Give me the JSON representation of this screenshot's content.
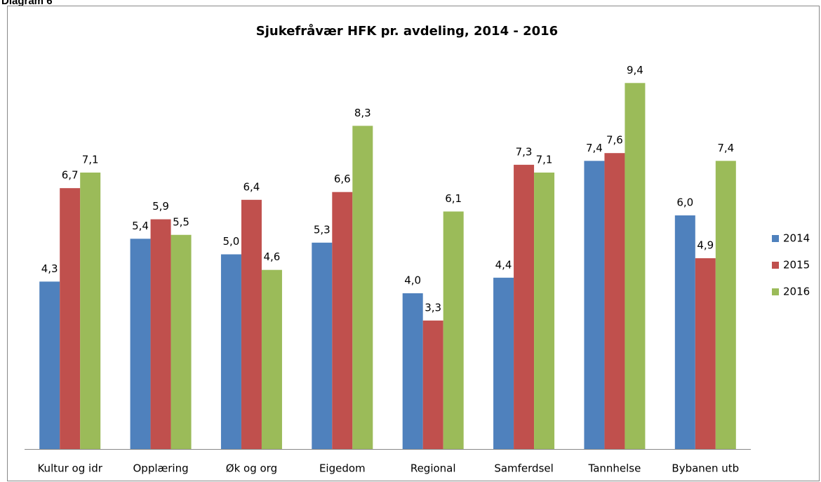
{
  "label": "Diagram 6",
  "chart_data": {
    "type": "bar",
    "title": "Sjukefråvær HFK pr. avdeling, 2014 - 2016",
    "categories": [
      "Kultur og idr",
      "Opplæring",
      "Øk og org",
      "Eigedom",
      "Regional",
      "Samferdsel",
      "Tannhelse",
      "Bybanen utb"
    ],
    "series": [
      {
        "name": "2014",
        "color": "#4f81bd",
        "values": [
          4.3,
          5.4,
          5.0,
          5.3,
          4.0,
          4.4,
          7.4,
          6.0
        ],
        "value_labels": [
          "4,3",
          "5,4",
          "5,0",
          "5,3",
          "4,0",
          "4,4",
          "7,4",
          "6,0"
        ]
      },
      {
        "name": "2015",
        "color": "#c0504d",
        "values": [
          6.7,
          5.9,
          6.4,
          6.6,
          3.3,
          7.3,
          7.6,
          4.9
        ],
        "value_labels": [
          "6,7",
          "5,9",
          "6,4",
          "6,6",
          "3,3",
          "7,3",
          "7,6",
          "4,9"
        ]
      },
      {
        "name": "2016",
        "color": "#9bbb59",
        "values": [
          7.1,
          5.5,
          4.6,
          8.3,
          6.1,
          7.1,
          9.4,
          7.4
        ],
        "value_labels": [
          "7,1",
          "5,5",
          "4,6",
          "8,3",
          "6,1",
          "7,1",
          "9,4",
          "7,4"
        ]
      }
    ],
    "ylim": [
      0,
      10
    ],
    "legend": "right"
  }
}
